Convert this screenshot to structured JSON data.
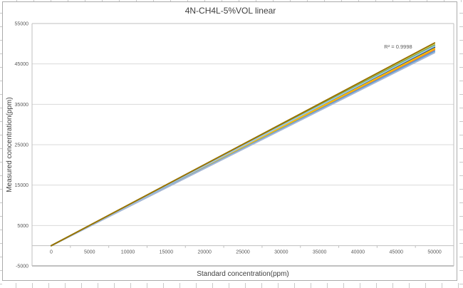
{
  "chart_data": {
    "type": "line",
    "title": "4N-CH4L-5%VOL linear",
    "xlabel": "Standard concentration(ppm)",
    "ylabel": "Measured concentration(ppm)",
    "xlim": [
      0,
      50000
    ],
    "ylim": [
      -5000,
      55000
    ],
    "x_ticks": [
      0,
      5000,
      10000,
      15000,
      20000,
      25000,
      30000,
      35000,
      40000,
      45000,
      50000
    ],
    "y_ticks": [
      55000,
      45000,
      35000,
      25000,
      15000,
      5000,
      -5000
    ],
    "grid": true,
    "legend": "none",
    "annotation": "R² = 0.9998",
    "x": [
      0,
      50000
    ],
    "series": [
      {
        "color": "#FFE699",
        "values": [
          0,
          49900
        ]
      },
      {
        "color": "#70AD47",
        "values": [
          0,
          49650
        ]
      },
      {
        "color": "#264478",
        "values": [
          0,
          49100
        ]
      },
      {
        "color": "#ED7D31",
        "values": [
          0,
          48500
        ]
      },
      {
        "color": "#FFC000",
        "values": [
          0,
          48800
        ]
      },
      {
        "color": "#5B9BD5",
        "values": [
          0,
          48150
        ]
      },
      {
        "color": "#A6B7D4",
        "values": [
          0,
          47800
        ]
      },
      {
        "color": "#9DC3E6",
        "values": [
          0,
          49400
        ]
      },
      {
        "color": "#997300",
        "values": [
          0,
          50200
        ]
      }
    ],
    "colors": {
      "tick_label": "#595959",
      "axis_title": "#404040",
      "gridline": "#D9D9D9",
      "plot_border": "#BFBFBF",
      "plot_border_bottom": "#808080",
      "category_axis": "#BFBFBF"
    }
  }
}
